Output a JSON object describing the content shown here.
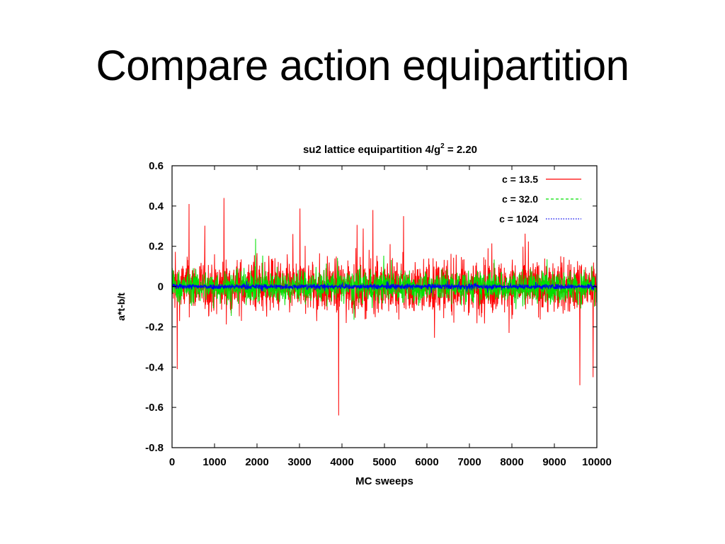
{
  "slide": {
    "title": "Compare action equipartition"
  },
  "chart_data": {
    "type": "line",
    "title": "su2 lattice equipartition 4/g",
    "title_superscript": "2",
    "title_suffix": " = 2.20",
    "xlabel": "MC sweeps",
    "ylabel": "a*t-b/t",
    "xlim": [
      0,
      10000
    ],
    "ylim": [
      -0.8,
      0.6
    ],
    "xticks": [
      0,
      1000,
      2000,
      3000,
      4000,
      5000,
      6000,
      7000,
      8000,
      9000,
      10000
    ],
    "yticks": [
      -0.8,
      -0.6,
      -0.4,
      -0.2,
      0,
      0.2,
      0.4,
      0.6
    ],
    "legend_position": "top-right",
    "grid": false,
    "series": [
      {
        "name": "c = 13.5",
        "color": "#ff0000",
        "style": "solid",
        "amplitude": 0.12,
        "spikes": [
          [
            400,
            0.41
          ],
          [
            1220,
            0.44
          ],
          [
            3920,
            -0.64
          ],
          [
            4730,
            0.38
          ],
          [
            9600,
            -0.49
          ],
          [
            9910,
            -0.45
          ],
          [
            120,
            -0.41
          ],
          [
            5450,
            0.35
          ]
        ]
      },
      {
        "name": "c = 32.0",
        "color": "#00e000",
        "style": "dashed",
        "amplitude": 0.07,
        "spikes": []
      },
      {
        "name": "c = 1024",
        "color": "#0000ee",
        "style": "dotted",
        "amplitude": 0.012,
        "spikes": []
      }
    ]
  }
}
